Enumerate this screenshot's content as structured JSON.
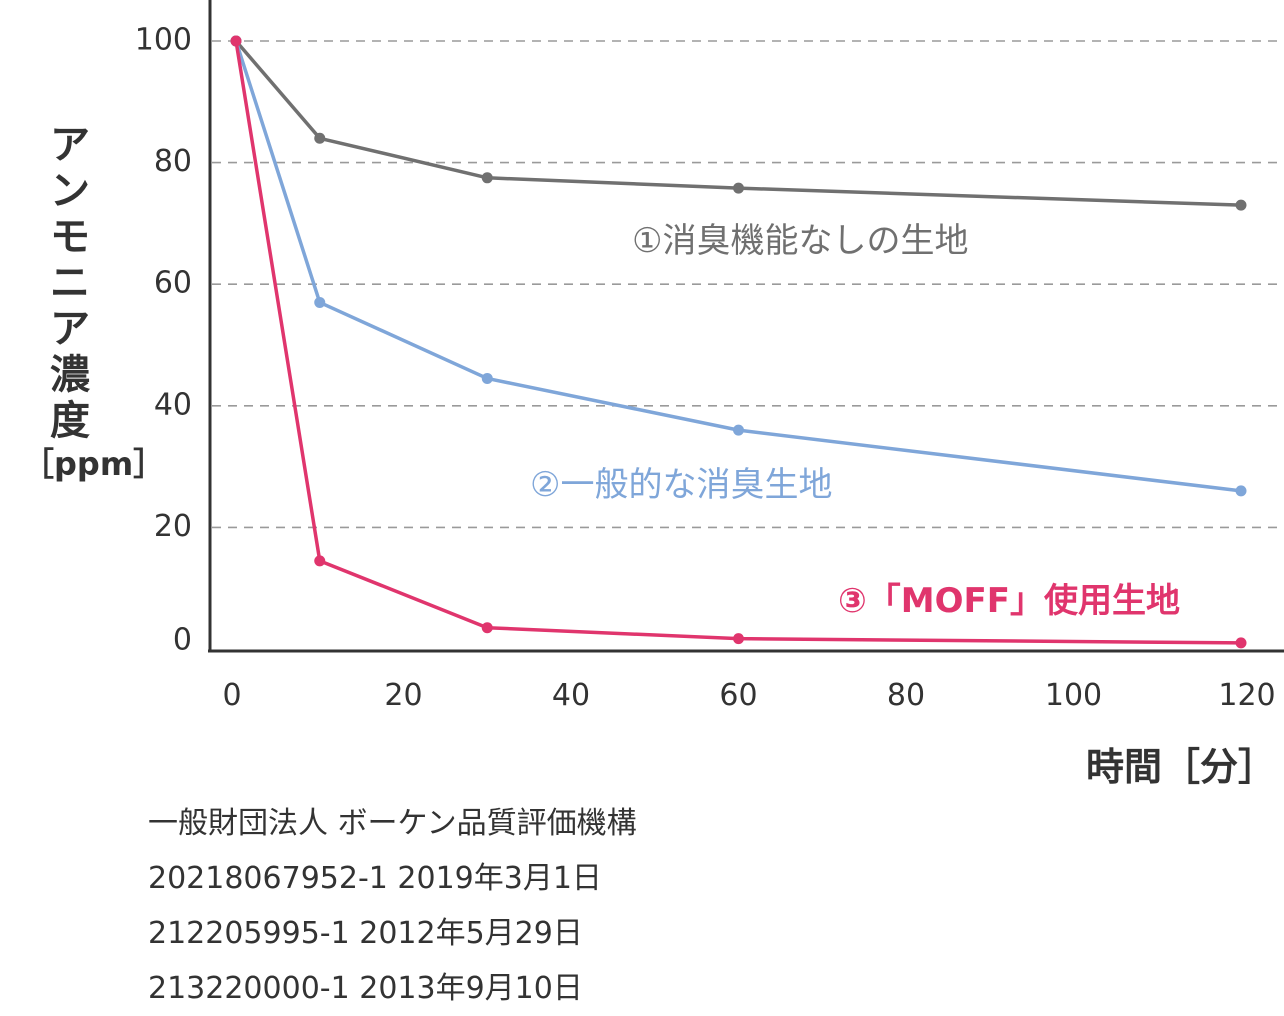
{
  "chart_data": {
    "type": "line",
    "x": [
      0,
      10,
      30,
      60,
      120
    ],
    "xlim": [
      0,
      120
    ],
    "xticks": [
      "0",
      "20",
      "40",
      "60",
      "80",
      "100",
      "120"
    ],
    "ylim": [
      0,
      100
    ],
    "yticks": [
      "0",
      "20",
      "40",
      "60",
      "80",
      "100"
    ],
    "grid": "horizontal-dashed",
    "xlabel": "時間［分］",
    "ylabel_chars": [
      "ア",
      "ン",
      "モ",
      "ニ",
      "ア",
      "濃",
      "度"
    ],
    "ylabel_unit": "［ppm］",
    "series": [
      {
        "name": "①消臭機能なしの生地",
        "values": [
          100,
          84,
          77.5,
          75.8,
          73
        ],
        "color": "#707070"
      },
      {
        "name": "②一般的な消臭生地",
        "values": [
          100,
          57,
          44.5,
          36,
          26
        ],
        "color": "#7fa6d9"
      },
      {
        "name": "③「MOFF」使用生地",
        "values": [
          100,
          14.5,
          3.5,
          1.7,
          1
        ],
        "color": "#e0356d"
      }
    ]
  },
  "source_lines": [
    "一般財団法人 ボーケン品質評価機構",
    "20218067952-1  2019年3月1日",
    "212205995-1  2012年5月29日",
    "213220000-1  2013年9月10日"
  ]
}
